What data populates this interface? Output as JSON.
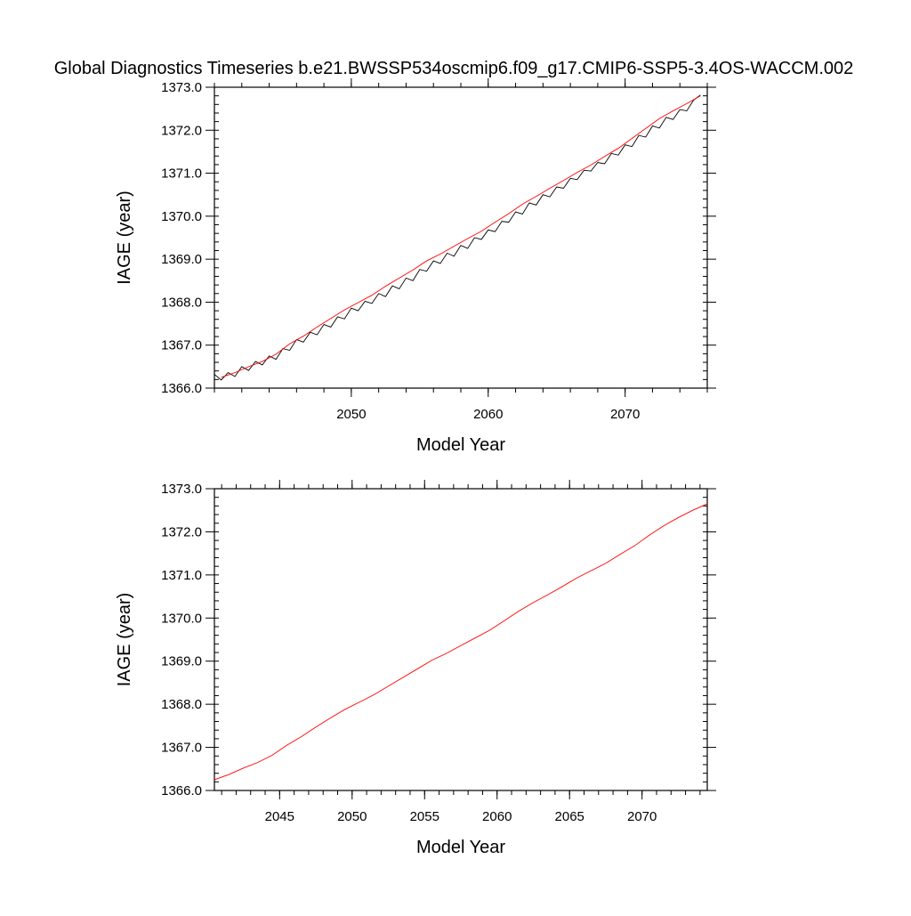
{
  "title": "Global Diagnostics Timeseries b.e21.BWSSP534oscmip6.f09_g17.CMIP6-SSP5-3.4OS-WACCM.002",
  "colors": {
    "monthly": "#000000",
    "annual": "#ff0000",
    "frame": "#000000"
  },
  "chart_data": [
    {
      "type": "line",
      "xlabel": "Model Year",
      "ylabel": "IAGE (year)",
      "xlim": [
        2040,
        2076
      ],
      "ylim": [
        1366.0,
        1373.0
      ],
      "x_major_ticks": [
        2050,
        2060,
        2070
      ],
      "x_minor_step": 2,
      "x_tick_labels": [
        "2050",
        "2060",
        "2070"
      ],
      "y_major_ticks": [
        1366.0,
        1367.0,
        1368.0,
        1369.0,
        1370.0,
        1371.0,
        1372.0,
        1373.0
      ],
      "y_tick_labels": [
        "1366.0",
        "1367.0",
        "1368.0",
        "1369.0",
        "1370.0",
        "1371.0",
        "1372.0",
        "1373.0"
      ],
      "y_minor_step": 0.2,
      "grid": false,
      "series": [
        {
          "color": "#000000",
          "x": [
            2040.0,
            2040.5,
            2041.0,
            2041.5,
            2042.0,
            2042.5,
            2043.0,
            2043.5,
            2044.0,
            2044.5,
            2045.0,
            2045.5,
            2046.0,
            2046.5,
            2047.0,
            2047.5,
            2048.0,
            2048.5,
            2049.0,
            2049.5,
            2050.0,
            2050.5,
            2051.0,
            2051.5,
            2052.0,
            2052.5,
            2053.0,
            2053.5,
            2054.0,
            2054.5,
            2055.0,
            2055.5,
            2056.0,
            2056.5,
            2057.0,
            2057.5,
            2058.0,
            2058.5,
            2059.0,
            2059.5,
            2060.0,
            2060.5,
            2061.0,
            2061.5,
            2062.0,
            2062.5,
            2063.0,
            2063.5,
            2064.0,
            2064.5,
            2065.0,
            2065.5,
            2066.0,
            2066.5,
            2067.0,
            2067.5,
            2068.0,
            2068.5,
            2069.0,
            2069.5,
            2070.0,
            2070.5,
            2071.0,
            2071.5,
            2072.0,
            2072.5,
            2073.0,
            2073.5,
            2074.0,
            2074.5,
            2075.0,
            2075.5
          ],
          "y": [
            1366.32,
            1366.19,
            1366.36,
            1366.27,
            1366.5,
            1366.41,
            1366.62,
            1366.54,
            1366.75,
            1366.67,
            1366.92,
            1366.88,
            1367.13,
            1367.07,
            1367.3,
            1367.24,
            1367.48,
            1367.42,
            1367.66,
            1367.61,
            1367.86,
            1367.8,
            1368.02,
            1367.97,
            1368.2,
            1368.13,
            1368.38,
            1368.31,
            1368.56,
            1368.5,
            1368.76,
            1368.72,
            1368.96,
            1368.9,
            1369.14,
            1369.07,
            1369.32,
            1369.25,
            1369.5,
            1369.46,
            1369.68,
            1369.64,
            1369.88,
            1369.86,
            1370.1,
            1370.05,
            1370.31,
            1370.26,
            1370.5,
            1370.45,
            1370.68,
            1370.65,
            1370.88,
            1370.85,
            1371.07,
            1371.05,
            1371.25,
            1371.22,
            1371.46,
            1371.42,
            1371.66,
            1371.62,
            1371.88,
            1371.84,
            1372.1,
            1372.05,
            1372.3,
            1372.25,
            1372.48,
            1372.45,
            1372.7,
            1372.82
          ]
        },
        {
          "color": "#ff0000",
          "x": [
            2040.5,
            2041.5,
            2042.5,
            2043.5,
            2044.5,
            2045.5,
            2046.5,
            2047.5,
            2048.5,
            2049.5,
            2050.5,
            2051.5,
            2052.5,
            2053.5,
            2054.5,
            2055.5,
            2056.5,
            2057.5,
            2058.5,
            2059.5,
            2060.5,
            2061.5,
            2062.5,
            2063.5,
            2064.5,
            2065.5,
            2066.5,
            2067.5,
            2068.5,
            2069.5,
            2070.5,
            2071.5,
            2072.5,
            2073.5,
            2074.5,
            2075.5
          ],
          "y": [
            1366.25,
            1366.36,
            1366.5,
            1366.62,
            1366.79,
            1367.03,
            1367.21,
            1367.42,
            1367.62,
            1367.82,
            1367.99,
            1368.16,
            1368.37,
            1368.56,
            1368.75,
            1368.96,
            1369.12,
            1369.3,
            1369.48,
            1369.65,
            1369.86,
            1370.06,
            1370.28,
            1370.46,
            1370.65,
            1370.83,
            1371.02,
            1371.19,
            1371.39,
            1371.58,
            1371.81,
            1372.04,
            1372.27,
            1372.45,
            1372.62,
            1372.8
          ]
        }
      ]
    },
    {
      "type": "line",
      "xlabel": "Model Year",
      "ylabel": "IAGE (year)",
      "xlim": [
        2040.5,
        2074.5
      ],
      "ylim": [
        1366.0,
        1373.0
      ],
      "x_major_ticks": [
        2045,
        2050,
        2055,
        2060,
        2065,
        2070
      ],
      "x_minor_step": 1,
      "x_tick_labels": [
        "2045",
        "2050",
        "2055",
        "2060",
        "2065",
        "2070"
      ],
      "y_major_ticks": [
        1366.0,
        1367.0,
        1368.0,
        1369.0,
        1370.0,
        1371.0,
        1372.0,
        1373.0
      ],
      "y_tick_labels": [
        "1366.0",
        "1367.0",
        "1368.0",
        "1369.0",
        "1370.0",
        "1371.0",
        "1372.0",
        "1373.0"
      ],
      "y_minor_step": 0.2,
      "grid": false,
      "series": [
        {
          "color": "#ff0000",
          "x": [
            2040.5,
            2041.5,
            2042.5,
            2043.5,
            2044.5,
            2045.5,
            2046.5,
            2047.5,
            2048.5,
            2049.5,
            2050.5,
            2051.5,
            2052.5,
            2053.5,
            2054.5,
            2055.5,
            2056.5,
            2057.5,
            2058.5,
            2059.5,
            2060.5,
            2061.5,
            2062.5,
            2063.5,
            2064.5,
            2065.5,
            2066.5,
            2067.5,
            2068.5,
            2069.5,
            2070.5,
            2071.5,
            2072.5,
            2073.5,
            2074.5
          ],
          "y": [
            1366.25,
            1366.37,
            1366.52,
            1366.65,
            1366.82,
            1367.05,
            1367.25,
            1367.47,
            1367.68,
            1367.88,
            1368.05,
            1368.22,
            1368.42,
            1368.62,
            1368.82,
            1369.02,
            1369.18,
            1369.36,
            1369.54,
            1369.72,
            1369.94,
            1370.16,
            1370.36,
            1370.54,
            1370.73,
            1370.93,
            1371.1,
            1371.27,
            1371.48,
            1371.68,
            1371.92,
            1372.14,
            1372.33,
            1372.5,
            1372.65
          ]
        }
      ]
    }
  ]
}
